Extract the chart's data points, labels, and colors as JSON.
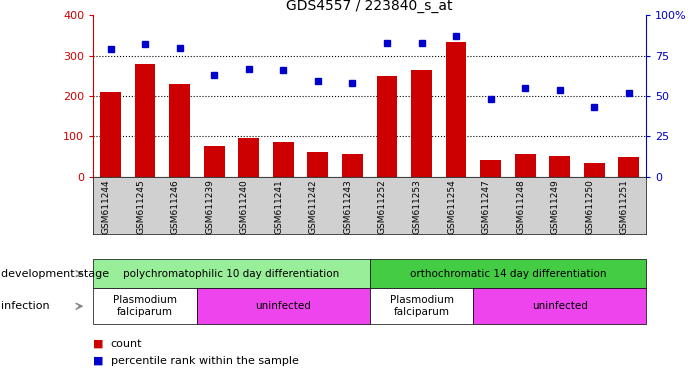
{
  "title": "GDS4557 / 223840_s_at",
  "samples": [
    "GSM611244",
    "GSM611245",
    "GSM611246",
    "GSM611239",
    "GSM611240",
    "GSM611241",
    "GSM611242",
    "GSM611243",
    "GSM611252",
    "GSM611253",
    "GSM611254",
    "GSM611247",
    "GSM611248",
    "GSM611249",
    "GSM611250",
    "GSM611251"
  ],
  "counts": [
    210,
    280,
    230,
    75,
    95,
    85,
    62,
    55,
    250,
    265,
    335,
    42,
    55,
    50,
    35,
    48
  ],
  "percentiles": [
    79,
    82,
    80,
    63,
    67,
    66,
    59,
    58,
    83,
    83,
    87,
    48,
    55,
    54,
    43,
    52
  ],
  "bar_color": "#cc0000",
  "dot_color": "#0000cc",
  "ylim_left": [
    0,
    400
  ],
  "ylim_right": [
    0,
    100
  ],
  "yticks_left": [
    0,
    100,
    200,
    300,
    400
  ],
  "yticks_right": [
    0,
    25,
    50,
    75,
    100
  ],
  "yticklabels_right": [
    "0",
    "25",
    "50",
    "75",
    "100%"
  ],
  "hlines": [
    100,
    200,
    300
  ],
  "stage_groups": [
    {
      "label": "polychromatophilic 10 day differentiation",
      "start": 0,
      "end": 8,
      "color": "#99ee99"
    },
    {
      "label": "orthochromatic 14 day differentiation",
      "start": 8,
      "end": 16,
      "color": "#44cc44"
    }
  ],
  "infection_groups": [
    {
      "label": "Plasmodium\nfalciparum",
      "start": 0,
      "end": 3,
      "color": "#ffffff"
    },
    {
      "label": "uninfected",
      "start": 3,
      "end": 8,
      "color": "#ee44ee"
    },
    {
      "label": "Plasmodium\nfalciparum",
      "start": 8,
      "end": 11,
      "color": "#ffffff"
    },
    {
      "label": "uninfected",
      "start": 11,
      "end": 16,
      "color": "#ee44ee"
    }
  ],
  "legend_count_color": "#cc0000",
  "legend_pct_color": "#0000cc",
  "xlabel_stage": "development stage",
  "xlabel_infection": "infection",
  "tick_color_left": "#cc0000",
  "tick_color_right": "#0000cc",
  "xticklabels_color": "#000000",
  "label_row_bg": "#d0d0d0"
}
